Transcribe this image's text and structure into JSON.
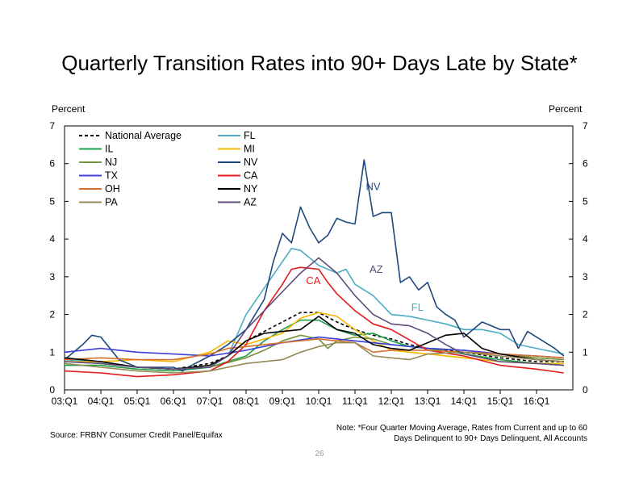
{
  "header": {
    "title": "Quarterly Transition Rates into 90+ Days Late by State*"
  },
  "units": {
    "left": "Percent",
    "right": "Percent"
  },
  "footer": {
    "note_line1": "Note: *Four Quarter Moving Average, Rates from Current and up to 60",
    "note_line2": "Days Delinquent to 90+ Days Delinquent, All Accounts",
    "source": "Source: FRBNY Consumer Credit Panel/Equifax",
    "page_number": "26"
  },
  "chart_data": {
    "type": "line",
    "title": "Quarterly Transition Rates into 90+ Days Late by State*",
    "ylabel": "Percent",
    "ylim": [
      0,
      7
    ],
    "yticks": [
      "0",
      "1",
      "2",
      "3",
      "4",
      "5",
      "6",
      "7"
    ],
    "x_tick_labels": [
      "03:Q1",
      "04:Q1",
      "05:Q1",
      "06:Q1",
      "07:Q1",
      "08:Q1",
      "09:Q1",
      "10:Q1",
      "11:Q1",
      "12:Q1",
      "13:Q1",
      "14:Q1",
      "15:Q1",
      "16:Q1"
    ],
    "x_tick_positions": [
      2003,
      2004,
      2005,
      2006,
      2007,
      2008,
      2009,
      2010,
      2011,
      2012,
      2013,
      2014,
      2015,
      2016
    ],
    "xlim": [
      2003,
      2017
    ],
    "grid": false,
    "legend_position": "top-left",
    "annotations": [
      {
        "text": "NV",
        "x": 2011.3,
        "y": 5.3,
        "color": "#1F497D"
      },
      {
        "text": "AZ",
        "x": 2011.4,
        "y": 3.1,
        "color": "#604A7B"
      },
      {
        "text": "CA",
        "x": 2009.65,
        "y": 2.8,
        "color": "#E41A1C"
      },
      {
        "text": "FL",
        "x": 2012.55,
        "y": 2.1,
        "color": "#4BACC6"
      }
    ],
    "series": [
      {
        "name": "National Average",
        "color": "#000000",
        "dash": "4,3",
        "x": [
          2003,
          2004,
          2005,
          2006,
          2007,
          2007.5,
          2008,
          2008.5,
          2009,
          2009.5,
          2010,
          2010.5,
          2011,
          2011.5,
          2012,
          2012.5,
          2013,
          2014,
          2015,
          2016,
          2016.75
        ],
        "y": [
          0.8,
          0.75,
          0.6,
          0.55,
          0.7,
          0.9,
          1.3,
          1.55,
          1.8,
          2.05,
          2.05,
          1.8,
          1.6,
          1.45,
          1.35,
          1.2,
          1.1,
          1.0,
          0.85,
          0.75,
          0.75
        ]
      },
      {
        "name": "FL",
        "color": "#4BACC6",
        "x": [
          2003,
          2004,
          2005,
          2006,
          2007,
          2007.5,
          2008,
          2008.5,
          2009,
          2009.25,
          2009.5,
          2010,
          2010.5,
          2010.75,
          2011,
          2011.5,
          2012,
          2012.5,
          2013,
          2013.5,
          2014,
          2014.5,
          2015,
          2015.5,
          2016,
          2016.75
        ],
        "y": [
          0.8,
          0.75,
          0.6,
          0.55,
          0.6,
          0.9,
          2.0,
          2.7,
          3.4,
          3.75,
          3.7,
          3.3,
          3.1,
          3.2,
          2.8,
          2.5,
          2.0,
          1.95,
          1.85,
          1.75,
          1.6,
          1.6,
          1.5,
          1.2,
          1.1,
          0.95
        ]
      },
      {
        "name": "IL",
        "color": "#1E9E49",
        "x": [
          2003,
          2004,
          2005,
          2006,
          2007,
          2008,
          2008.5,
          2009,
          2009.5,
          2010,
          2010.5,
          2011,
          2011.5,
          2012,
          2012.5,
          2013,
          2014,
          2015,
          2016,
          2016.75
        ],
        "y": [
          0.65,
          0.65,
          0.55,
          0.5,
          0.6,
          0.9,
          1.3,
          1.6,
          1.85,
          1.85,
          1.6,
          1.45,
          1.5,
          1.3,
          1.15,
          1.1,
          0.95,
          0.8,
          0.7,
          0.65
        ]
      },
      {
        "name": "MI",
        "color": "#F5B800",
        "x": [
          2003,
          2004,
          2005,
          2006,
          2007,
          2007.5,
          2008,
          2008.5,
          2009,
          2009.5,
          2010,
          2010.5,
          2011,
          2011.5,
          2012,
          2012.5,
          2013,
          2014,
          2015,
          2016,
          2016.75
        ],
        "y": [
          0.75,
          0.75,
          0.8,
          0.75,
          1.0,
          1.3,
          1.2,
          1.35,
          1.5,
          1.9,
          2.05,
          1.95,
          1.6,
          1.3,
          1.05,
          1.0,
          0.95,
          0.85,
          0.75,
          0.7,
          0.7
        ]
      },
      {
        "name": "NJ",
        "color": "#77933C",
        "x": [
          2003,
          2004,
          2005,
          2006,
          2007,
          2008,
          2008.5,
          2009,
          2009.5,
          2010,
          2010.25,
          2010.5,
          2011,
          2011.5,
          2012,
          2012.5,
          2013,
          2014,
          2015,
          2016,
          2016.75
        ],
        "y": [
          0.75,
          0.7,
          0.6,
          0.55,
          0.6,
          0.85,
          1.05,
          1.3,
          1.45,
          1.35,
          1.1,
          1.3,
          1.4,
          1.35,
          1.2,
          1.15,
          1.1,
          1.05,
          0.95,
          0.85,
          0.8
        ]
      },
      {
        "name": "NV",
        "color": "#1F497D",
        "x": [
          2003,
          2003.5,
          2003.75,
          2004,
          2004.5,
          2005,
          2005.5,
          2006,
          2006.25,
          2006.5,
          2007,
          2007.5,
          2008,
          2008.5,
          2008.75,
          2009,
          2009.25,
          2009.5,
          2009.75,
          2010,
          2010.25,
          2010.5,
          2010.75,
          2011,
          2011.25,
          2011.5,
          2011.75,
          2012,
          2012.25,
          2012.5,
          2012.75,
          2013,
          2013.25,
          2013.5,
          2013.75,
          2014,
          2014.5,
          2015,
          2015.25,
          2015.5,
          2015.75,
          2016,
          2016.5,
          2016.75
        ],
        "y": [
          0.8,
          1.2,
          1.45,
          1.4,
          0.8,
          0.6,
          0.6,
          0.6,
          0.5,
          0.65,
          0.9,
          1.2,
          1.6,
          2.4,
          3.4,
          4.15,
          3.9,
          4.85,
          4.3,
          3.9,
          4.1,
          4.55,
          4.45,
          4.4,
          6.1,
          4.6,
          4.7,
          4.7,
          2.85,
          3.0,
          2.65,
          2.85,
          2.2,
          2.0,
          1.85,
          1.4,
          1.8,
          1.6,
          1.6,
          1.1,
          1.55,
          1.4,
          1.1,
          0.9
        ]
      },
      {
        "name": "TX",
        "color": "#3F3FD8",
        "x": [
          2003,
          2004,
          2005,
          2006,
          2007,
          2008,
          2009,
          2010,
          2011,
          2012,
          2013,
          2014,
          2015,
          2016,
          2016.75
        ],
        "y": [
          1.0,
          1.1,
          1.0,
          0.95,
          0.9,
          1.05,
          1.25,
          1.4,
          1.3,
          1.2,
          1.1,
          1.05,
          0.95,
          0.9,
          0.85
        ]
      },
      {
        "name": "CA",
        "color": "#E41A1C",
        "x": [
          2003,
          2004,
          2005,
          2006,
          2007,
          2007.5,
          2008,
          2008.5,
          2009,
          2009.25,
          2009.5,
          2010,
          2010.25,
          2010.5,
          2011,
          2011.5,
          2012,
          2013,
          2014,
          2015,
          2016,
          2016.75
        ],
        "y": [
          0.5,
          0.45,
          0.35,
          0.4,
          0.5,
          0.75,
          1.2,
          2.1,
          2.8,
          3.2,
          3.25,
          3.2,
          2.85,
          2.55,
          2.1,
          1.75,
          1.6,
          1.05,
          0.9,
          0.65,
          0.55,
          0.45
        ]
      },
      {
        "name": "OH",
        "color": "#D4702C",
        "x": [
          2003,
          2004,
          2005,
          2006,
          2007,
          2007.5,
          2008,
          2009,
          2010,
          2011,
          2011.5,
          2012,
          2013,
          2014,
          2015,
          2016,
          2016.75
        ],
        "y": [
          0.8,
          0.85,
          0.8,
          0.8,
          0.95,
          1.1,
          1.15,
          1.25,
          1.35,
          1.25,
          1.0,
          1.05,
          1.05,
          1.0,
          0.95,
          0.9,
          0.85
        ]
      },
      {
        "name": "NY",
        "color": "#000000",
        "x": [
          2003,
          2004,
          2005,
          2006,
          2007,
          2007.5,
          2008,
          2008.5,
          2009,
          2009.5,
          2010,
          2010.5,
          2011,
          2011.5,
          2012,
          2012.5,
          2013,
          2013.5,
          2014,
          2014.5,
          2015,
          2016,
          2016.75
        ],
        "y": [
          0.85,
          0.75,
          0.6,
          0.55,
          0.65,
          0.9,
          1.3,
          1.5,
          1.55,
          1.6,
          1.95,
          1.6,
          1.5,
          1.2,
          1.1,
          1.05,
          1.25,
          1.45,
          1.5,
          1.1,
          0.95,
          0.8,
          0.75
        ]
      },
      {
        "name": "PA",
        "color": "#948A54",
        "x": [
          2003,
          2004,
          2005,
          2006,
          2007,
          2008,
          2009,
          2009.5,
          2010,
          2010.5,
          2011,
          2011.5,
          2012,
          2012.5,
          2013,
          2014,
          2015,
          2016,
          2016.75
        ],
        "y": [
          0.7,
          0.6,
          0.5,
          0.45,
          0.5,
          0.7,
          0.8,
          1.0,
          1.15,
          1.25,
          1.25,
          0.9,
          0.85,
          0.8,
          0.95,
          1.0,
          0.9,
          0.8,
          0.75
        ]
      },
      {
        "name": "AZ",
        "color": "#604A7B",
        "x": [
          2003,
          2004,
          2005,
          2006,
          2007,
          2007.5,
          2008,
          2008.5,
          2009,
          2009.5,
          2010,
          2010.5,
          2011,
          2011.5,
          2012,
          2012.5,
          2013,
          2013.5,
          2014,
          2015,
          2016,
          2016.75
        ],
        "y": [
          0.75,
          0.7,
          0.6,
          0.55,
          0.6,
          0.9,
          1.6,
          2.1,
          2.6,
          3.1,
          3.5,
          3.1,
          2.5,
          2.0,
          1.75,
          1.7,
          1.5,
          1.2,
          0.95,
          0.75,
          0.7,
          0.65
        ]
      }
    ]
  }
}
